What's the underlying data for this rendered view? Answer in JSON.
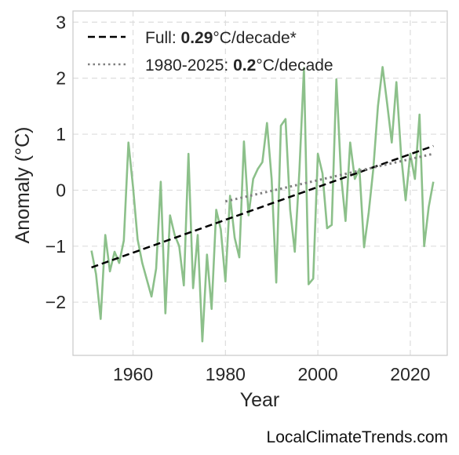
{
  "chart_data": {
    "type": "line",
    "xlabel": "Year",
    "ylabel": "Anomaly (°C)",
    "xlim": [
      1947,
      2028
    ],
    "ylim": [
      -2.95,
      3.2
    ],
    "xticks": [
      1960,
      1980,
      2000,
      2020
    ],
    "yticks": [
      3,
      2,
      1,
      0,
      -1,
      -2
    ],
    "ytick_labels": [
      "3",
      "2",
      "1",
      "0",
      "−1",
      "−2"
    ],
    "grid": true,
    "legend_position": "top-left",
    "colors": {
      "series": "#8cc08a",
      "full_trend": "#000000",
      "recent_trend": "#7f7f7f",
      "grid": "#dddddd",
      "frame": "#cccccc"
    },
    "series": [
      {
        "x": [
          1951,
          1952,
          1953,
          1954,
          1955,
          1956,
          1957,
          1958,
          1959,
          1960,
          1961,
          1962,
          1963,
          1964,
          1965,
          1966,
          1967,
          1968,
          1969,
          1970,
          1971,
          1972,
          1973,
          1974,
          1975,
          1976,
          1977,
          1978,
          1979,
          1980,
          1981,
          1982,
          1983,
          1984,
          1985,
          1986,
          1987,
          1988,
          1989,
          1990,
          1991,
          1992,
          1993,
          1994,
          1995,
          1996,
          1997,
          1998,
          1999,
          2000,
          2001,
          2002,
          2003,
          2004,
          2005,
          2006,
          2007,
          2008,
          2009,
          2010,
          2011,
          2012,
          2013,
          2014,
          2015,
          2016,
          2017,
          2018,
          2019,
          2020,
          2021,
          2022,
          2023,
          2024,
          2025
        ],
        "values": [
          -1.08,
          -1.5,
          -2.3,
          -0.8,
          -1.45,
          -1.1,
          -1.3,
          -0.9,
          0.85,
          0.05,
          -0.88,
          -1.3,
          -1.6,
          -1.9,
          -1.4,
          0.15,
          -2.2,
          -0.45,
          -0.8,
          -1.0,
          -1.7,
          0.65,
          -1.75,
          -0.8,
          -2.7,
          -1.15,
          -2.12,
          -0.35,
          -0.7,
          -1.63,
          -0.1,
          -0.85,
          -1.2,
          0.87,
          -0.45,
          0.2,
          0.38,
          0.5,
          1.2,
          0.2,
          -1.65,
          1.15,
          1.27,
          -0.35,
          -1.1,
          0.35,
          2.18,
          -1.68,
          -1.58,
          0.65,
          0.3,
          -0.68,
          -0.62,
          1.98,
          0.28,
          -0.55,
          0.85,
          0.2,
          0.38,
          -1.02,
          -0.4,
          0.38,
          1.5,
          2.2,
          1.55,
          0.85,
          1.93,
          0.65,
          -0.18,
          0.65,
          0.2,
          1.35,
          -1.0,
          -0.3,
          0.15
        ]
      }
    ],
    "trends": [
      {
        "kind": "full",
        "x": [
          1951,
          2025
        ],
        "y": [
          -1.38,
          0.79
        ]
      },
      {
        "kind": "recent",
        "x": [
          1980,
          2025
        ],
        "y": [
          -0.2,
          0.65
        ]
      }
    ],
    "legend": [
      {
        "prefix": "Full: ",
        "value": "0.29",
        "suffix": "°C/decade*"
      },
      {
        "prefix": "1980-2025: ",
        "value": "0.2",
        "suffix": "°C/decade"
      }
    ]
  },
  "credit": "LocalClimateTrends.com"
}
